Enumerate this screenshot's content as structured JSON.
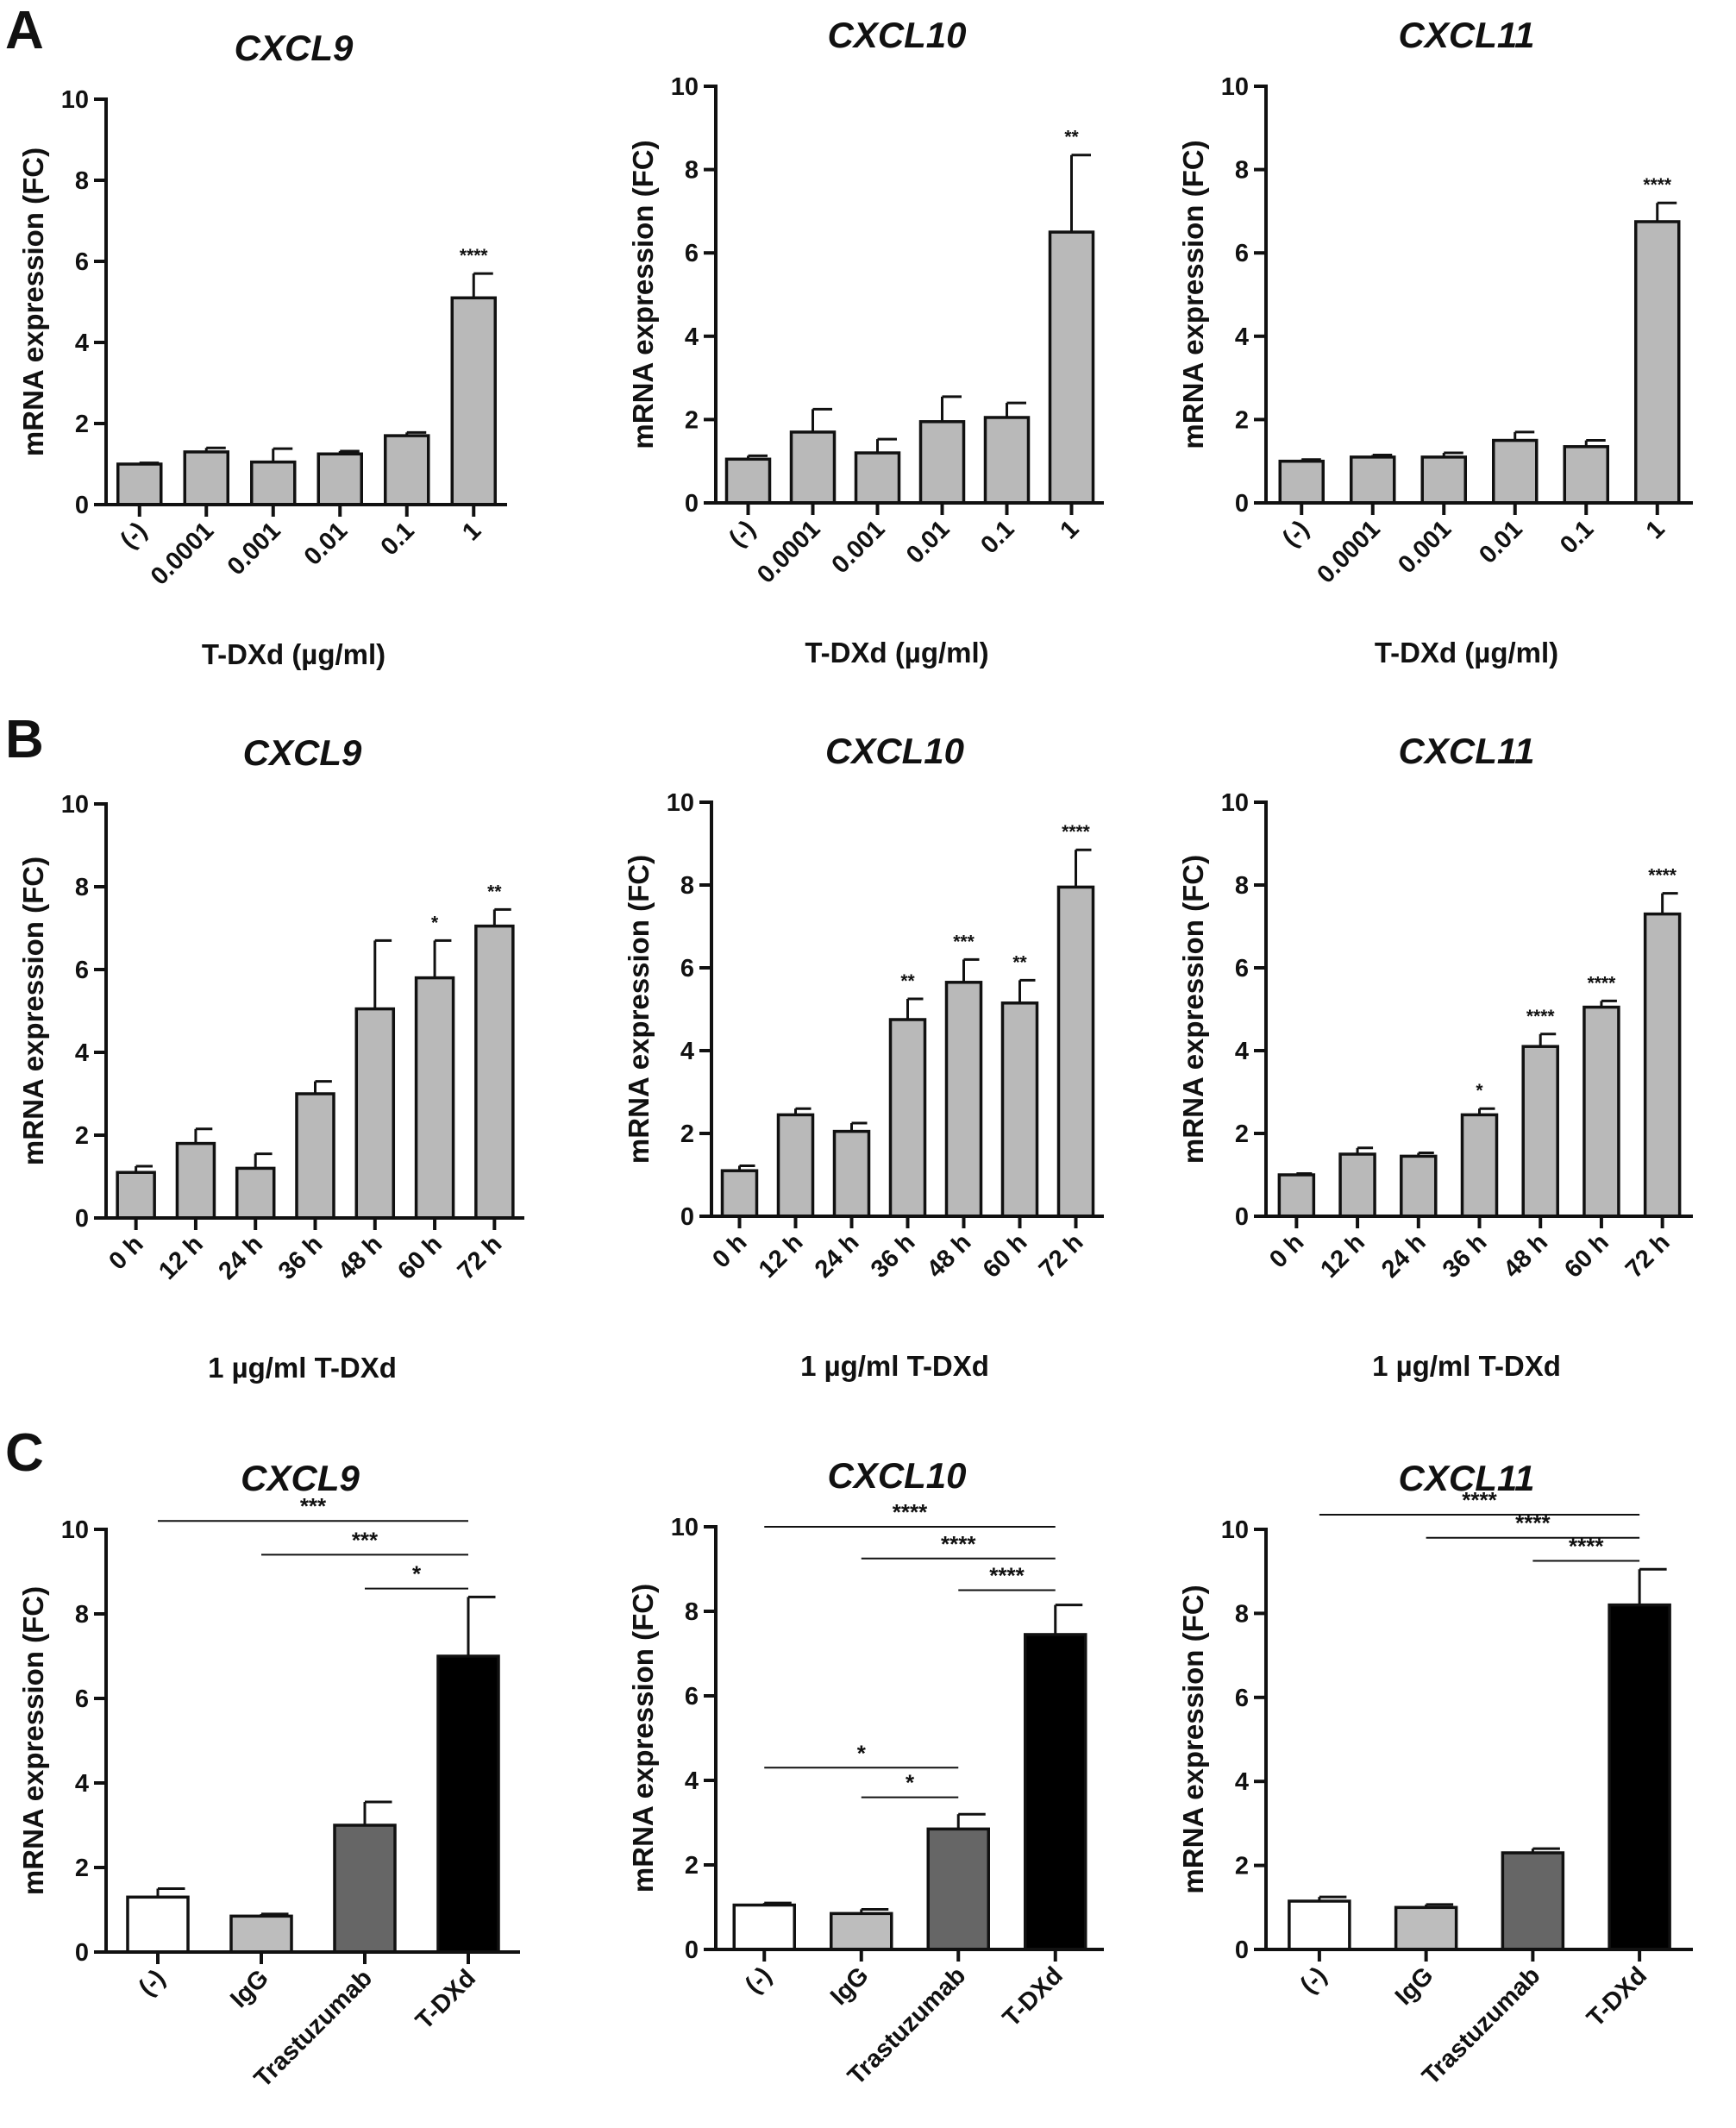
{
  "panels": [
    "A",
    "B",
    "C"
  ],
  "chart_data": [
    {
      "panel": "A",
      "type": "bar",
      "title": "CXCL9",
      "ylabel": "mRNA expression (FC)",
      "xlabel": "T-DXd (µg/ml)",
      "ylim": [
        0,
        10
      ],
      "yticks": [
        0,
        2,
        4,
        6,
        8,
        10
      ],
      "categories": [
        "(-)",
        "0.0001",
        "0.001",
        "0.01",
        "0.1",
        "1"
      ],
      "values": [
        1.0,
        1.3,
        1.05,
        1.25,
        1.7,
        5.1
      ],
      "errors": [
        0.03,
        0.1,
        0.33,
        0.07,
        0.08,
        0.6
      ],
      "annotations": [
        "",
        "",
        "",
        "",
        "",
        "****"
      ],
      "colors": [
        "#b9b9b9"
      ],
      "comparisons": []
    },
    {
      "panel": "A",
      "type": "bar",
      "title": "CXCL10",
      "ylabel": "mRNA expression (FC)",
      "xlabel": "T-DXd (µg/ml)",
      "ylim": [
        0,
        10
      ],
      "yticks": [
        0,
        2,
        4,
        6,
        8,
        10
      ],
      "categories": [
        "(-)",
        "0.0001",
        "0.001",
        "0.01",
        "0.1",
        "1"
      ],
      "values": [
        1.05,
        1.7,
        1.2,
        1.95,
        2.05,
        6.5
      ],
      "errors": [
        0.08,
        0.55,
        0.33,
        0.6,
        0.35,
        1.85
      ],
      "annotations": [
        "",
        "",
        "",
        "",
        "",
        "**"
      ],
      "colors": [
        "#b9b9b9"
      ],
      "comparisons": []
    },
    {
      "panel": "A",
      "type": "bar",
      "title": "CXCL11",
      "ylabel": "mRNA expression (FC)",
      "xlabel": "T-DXd (µg/ml)",
      "ylim": [
        0,
        10
      ],
      "yticks": [
        0,
        2,
        4,
        6,
        8,
        10
      ],
      "categories": [
        "(-)",
        "0.0001",
        "0.001",
        "0.01",
        "0.1",
        "1"
      ],
      "values": [
        1.0,
        1.1,
        1.1,
        1.5,
        1.35,
        6.75
      ],
      "errors": [
        0.04,
        0.05,
        0.1,
        0.2,
        0.15,
        0.45
      ],
      "annotations": [
        "",
        "",
        "",
        "",
        "",
        "****"
      ],
      "colors": [
        "#b9b9b9"
      ],
      "comparisons": []
    },
    {
      "panel": "B",
      "type": "bar",
      "title": "CXCL9",
      "ylabel": "mRNA expression (FC)",
      "xlabel": "1 µg/ml T-DXd",
      "ylim": [
        0,
        10
      ],
      "yticks": [
        0,
        2,
        4,
        6,
        8,
        10
      ],
      "categories": [
        "0 h",
        "12 h",
        "24 h",
        "36 h",
        "48 h",
        "60 h",
        "72 h"
      ],
      "values": [
        1.1,
        1.8,
        1.2,
        3.0,
        5.05,
        5.8,
        7.05
      ],
      "errors": [
        0.15,
        0.35,
        0.35,
        0.3,
        1.65,
        0.9,
        0.4
      ],
      "annotations": [
        "",
        "",
        "",
        "",
        "",
        "*",
        "**"
      ],
      "colors": [
        "#b9b9b9"
      ],
      "comparisons": []
    },
    {
      "panel": "B",
      "type": "bar",
      "title": "CXCL10",
      "ylabel": "mRNA expression (FC)",
      "xlabel": "1 µg/ml T-DXd",
      "ylim": [
        0,
        10
      ],
      "yticks": [
        0,
        2,
        4,
        6,
        8,
        10
      ],
      "categories": [
        "0 h",
        "12 h",
        "24 h",
        "36 h",
        "48 h",
        "60 h",
        "72 h"
      ],
      "values": [
        1.1,
        2.45,
        2.05,
        4.75,
        5.65,
        5.15,
        7.95
      ],
      "errors": [
        0.12,
        0.15,
        0.2,
        0.5,
        0.55,
        0.55,
        0.9
      ],
      "annotations": [
        "",
        "",
        "",
        "**",
        "***",
        "**",
        "****"
      ],
      "colors": [
        "#b9b9b9"
      ],
      "comparisons": []
    },
    {
      "panel": "B",
      "type": "bar",
      "title": "CXCL11",
      "ylabel": "mRNA expression (FC)",
      "xlabel": "1 µg/ml T-DXd",
      "ylim": [
        0,
        10
      ],
      "yticks": [
        0,
        2,
        4,
        6,
        8,
        10
      ],
      "categories": [
        "0 h",
        "12 h",
        "24 h",
        "36 h",
        "48 h",
        "60 h",
        "72 h"
      ],
      "values": [
        1.0,
        1.5,
        1.45,
        2.45,
        4.1,
        5.05,
        7.3
      ],
      "errors": [
        0.03,
        0.15,
        0.08,
        0.15,
        0.3,
        0.15,
        0.5
      ],
      "annotations": [
        "",
        "",
        "",
        "*",
        "****",
        "****",
        "****"
      ],
      "colors": [
        "#b9b9b9"
      ],
      "comparisons": []
    },
    {
      "panel": "C",
      "type": "bar",
      "title": "CXCL9",
      "ylabel": "mRNA expression (FC)",
      "xlabel": "",
      "ylim": [
        0,
        10
      ],
      "yticks": [
        0,
        2,
        4,
        6,
        8,
        10
      ],
      "categories": [
        "(-)",
        "IgG",
        "Trastuzumab",
        "T-DXd"
      ],
      "values": [
        1.3,
        0.85,
        3.0,
        7.0
      ],
      "errors": [
        0.2,
        0.05,
        0.55,
        1.4
      ],
      "annotations": [
        "",
        "",
        "",
        ""
      ],
      "colors": [
        "#ffffff",
        "#bdbdbd",
        "#666666",
        "#000000"
      ],
      "comparisons": [
        {
          "from": 0,
          "to": 3,
          "y": 10.2,
          "label": "***"
        },
        {
          "from": 1,
          "to": 3,
          "y": 9.4,
          "label": "***"
        },
        {
          "from": 2,
          "to": 3,
          "y": 8.6,
          "label": "*"
        }
      ]
    },
    {
      "panel": "C",
      "type": "bar",
      "title": "CXCL10",
      "ylabel": "mRNA expression (FC)",
      "xlabel": "",
      "ylim": [
        0,
        10
      ],
      "yticks": [
        0,
        2,
        4,
        6,
        8,
        10
      ],
      "categories": [
        "(-)",
        "IgG",
        "Trastuzumab",
        "T-DXd"
      ],
      "values": [
        1.05,
        0.85,
        2.85,
        7.45
      ],
      "errors": [
        0.05,
        0.1,
        0.35,
        0.7
      ],
      "annotations": [
        "",
        "",
        "",
        ""
      ],
      "colors": [
        "#ffffff",
        "#bdbdbd",
        "#666666",
        "#000000"
      ],
      "comparisons": [
        {
          "from": 0,
          "to": 3,
          "y": 10.0,
          "label": "****"
        },
        {
          "from": 1,
          "to": 3,
          "y": 9.25,
          "label": "****"
        },
        {
          "from": 2,
          "to": 3,
          "y": 8.5,
          "label": "****"
        },
        {
          "from": 0,
          "to": 2,
          "y": 4.3,
          "label": "*"
        },
        {
          "from": 1,
          "to": 2,
          "y": 3.6,
          "label": "*"
        }
      ]
    },
    {
      "panel": "C",
      "type": "bar",
      "title": "CXCL11",
      "ylabel": "mRNA expression (FC)",
      "xlabel": "",
      "ylim": [
        0,
        10
      ],
      "yticks": [
        0,
        2,
        4,
        6,
        8,
        10
      ],
      "categories": [
        "(-)",
        "IgG",
        "Trastuzumab",
        "T-DXd"
      ],
      "values": [
        1.15,
        1.0,
        2.3,
        8.2
      ],
      "errors": [
        0.1,
        0.07,
        0.1,
        0.85
      ],
      "annotations": [
        "",
        "",
        "",
        ""
      ],
      "colors": [
        "#ffffff",
        "#bdbdbd",
        "#666666",
        "#000000"
      ],
      "comparisons": [
        {
          "from": 0,
          "to": 3,
          "y": 10.35,
          "label": "****"
        },
        {
          "from": 1,
          "to": 3,
          "y": 9.8,
          "label": "****"
        },
        {
          "from": 2,
          "to": 3,
          "y": 9.25,
          "label": "****"
        }
      ]
    }
  ]
}
